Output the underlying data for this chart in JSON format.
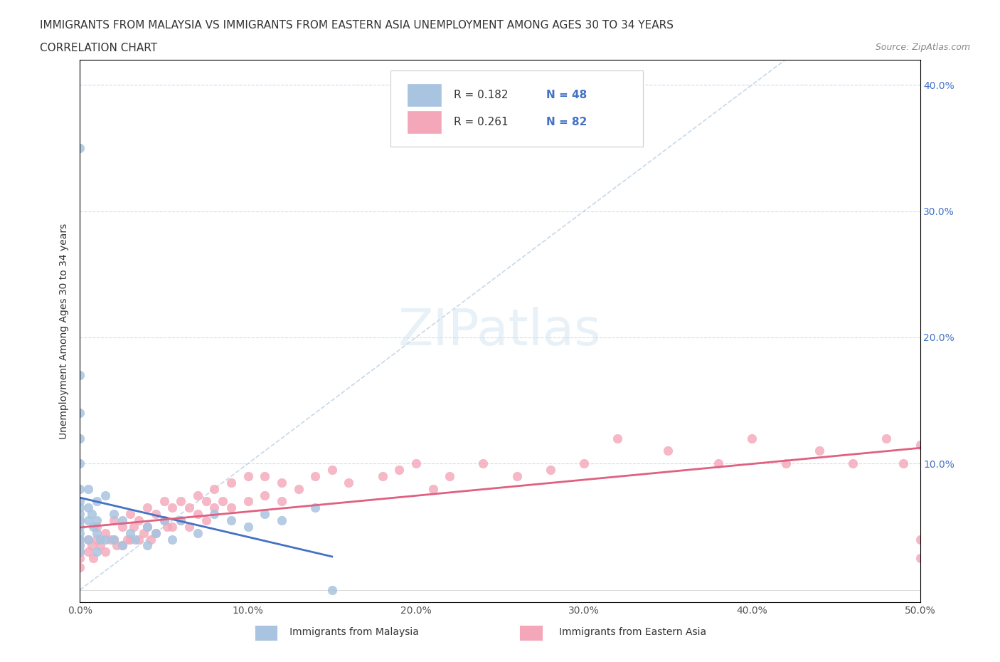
{
  "title_line1": "IMMIGRANTS FROM MALAYSIA VS IMMIGRANTS FROM EASTERN ASIA UNEMPLOYMENT AMONG AGES 30 TO 34 YEARS",
  "title_line2": "CORRELATION CHART",
  "source": "Source: ZipAtlas.com",
  "xlabel": "",
  "ylabel": "Unemployment Among Ages 30 to 34 years",
  "xlim": [
    0,
    0.5
  ],
  "ylim": [
    -0.01,
    0.42
  ],
  "xticks": [
    0.0,
    0.1,
    0.2,
    0.3,
    0.4,
    0.5
  ],
  "xticklabels": [
    "0.0%",
    "10.0%",
    "20.0%",
    "30.0%",
    "40.0%",
    "50.0%"
  ],
  "yticks_right": [
    0.0,
    0.1,
    0.2,
    0.3,
    0.4
  ],
  "yticklabels_right": [
    "",
    "10.0%",
    "20.0%",
    "30.0%",
    "40.0%"
  ],
  "malaysia_color": "#a8c4e0",
  "eastern_asia_color": "#f4a7b9",
  "malaysia_line_color": "#4472c4",
  "eastern_asia_line_color": "#e06080",
  "diagonal_color": "#b0c8e0",
  "r_malaysia": 0.182,
  "n_malaysia": 48,
  "r_eastern_asia": 0.261,
  "n_eastern_asia": 82,
  "watermark": "ZIPatlas",
  "malaysia_scatter_x": [
    0.0,
    0.0,
    0.0,
    0.0,
    0.0,
    0.0,
    0.0,
    0.0,
    0.0,
    0.0,
    0.0,
    0.0,
    0.0,
    0.0,
    0.0,
    0.005,
    0.005,
    0.005,
    0.005,
    0.007,
    0.008,
    0.01,
    0.01,
    0.01,
    0.01,
    0.012,
    0.015,
    0.015,
    0.02,
    0.02,
    0.025,
    0.025,
    0.03,
    0.033,
    0.04,
    0.04,
    0.045,
    0.05,
    0.055,
    0.06,
    0.07,
    0.08,
    0.09,
    0.1,
    0.11,
    0.12,
    0.14,
    0.15
  ],
  "malaysia_scatter_y": [
    0.35,
    0.17,
    0.14,
    0.12,
    0.1,
    0.08,
    0.07,
    0.065,
    0.06,
    0.055,
    0.05,
    0.045,
    0.04,
    0.035,
    0.03,
    0.08,
    0.065,
    0.055,
    0.04,
    0.06,
    0.05,
    0.07,
    0.055,
    0.045,
    0.03,
    0.04,
    0.075,
    0.04,
    0.06,
    0.04,
    0.055,
    0.035,
    0.045,
    0.04,
    0.05,
    0.035,
    0.045,
    0.055,
    0.04,
    0.055,
    0.045,
    0.06,
    0.055,
    0.05,
    0.06,
    0.055,
    0.065,
    0.0
  ],
  "eastern_asia_scatter_x": [
    0.0,
    0.0,
    0.0,
    0.0,
    0.0,
    0.0,
    0.005,
    0.005,
    0.007,
    0.008,
    0.01,
    0.01,
    0.012,
    0.015,
    0.015,
    0.018,
    0.02,
    0.02,
    0.022,
    0.025,
    0.025,
    0.028,
    0.03,
    0.03,
    0.032,
    0.035,
    0.035,
    0.038,
    0.04,
    0.04,
    0.042,
    0.045,
    0.045,
    0.05,
    0.05,
    0.052,
    0.055,
    0.055,
    0.06,
    0.06,
    0.065,
    0.065,
    0.07,
    0.07,
    0.075,
    0.075,
    0.08,
    0.08,
    0.085,
    0.09,
    0.09,
    0.1,
    0.1,
    0.11,
    0.11,
    0.12,
    0.12,
    0.13,
    0.14,
    0.15,
    0.16,
    0.18,
    0.19,
    0.2,
    0.21,
    0.22,
    0.24,
    0.26,
    0.28,
    0.3,
    0.32,
    0.35,
    0.38,
    0.4,
    0.42,
    0.44,
    0.46,
    0.48,
    0.49,
    0.5,
    0.5,
    0.5
  ],
  "eastern_asia_scatter_y": [
    0.055,
    0.04,
    0.035,
    0.03,
    0.025,
    0.018,
    0.04,
    0.03,
    0.035,
    0.025,
    0.05,
    0.04,
    0.035,
    0.045,
    0.03,
    0.04,
    0.055,
    0.04,
    0.035,
    0.05,
    0.035,
    0.04,
    0.06,
    0.04,
    0.05,
    0.055,
    0.04,
    0.045,
    0.065,
    0.05,
    0.04,
    0.06,
    0.045,
    0.07,
    0.055,
    0.05,
    0.065,
    0.05,
    0.07,
    0.055,
    0.065,
    0.05,
    0.075,
    0.06,
    0.07,
    0.055,
    0.08,
    0.065,
    0.07,
    0.085,
    0.065,
    0.09,
    0.07,
    0.09,
    0.075,
    0.085,
    0.07,
    0.08,
    0.09,
    0.095,
    0.085,
    0.09,
    0.095,
    0.1,
    0.08,
    0.09,
    0.1,
    0.09,
    0.095,
    0.1,
    0.12,
    0.11,
    0.1,
    0.12,
    0.1,
    0.11,
    0.1,
    0.12,
    0.1,
    0.115,
    0.04,
    0.025
  ]
}
